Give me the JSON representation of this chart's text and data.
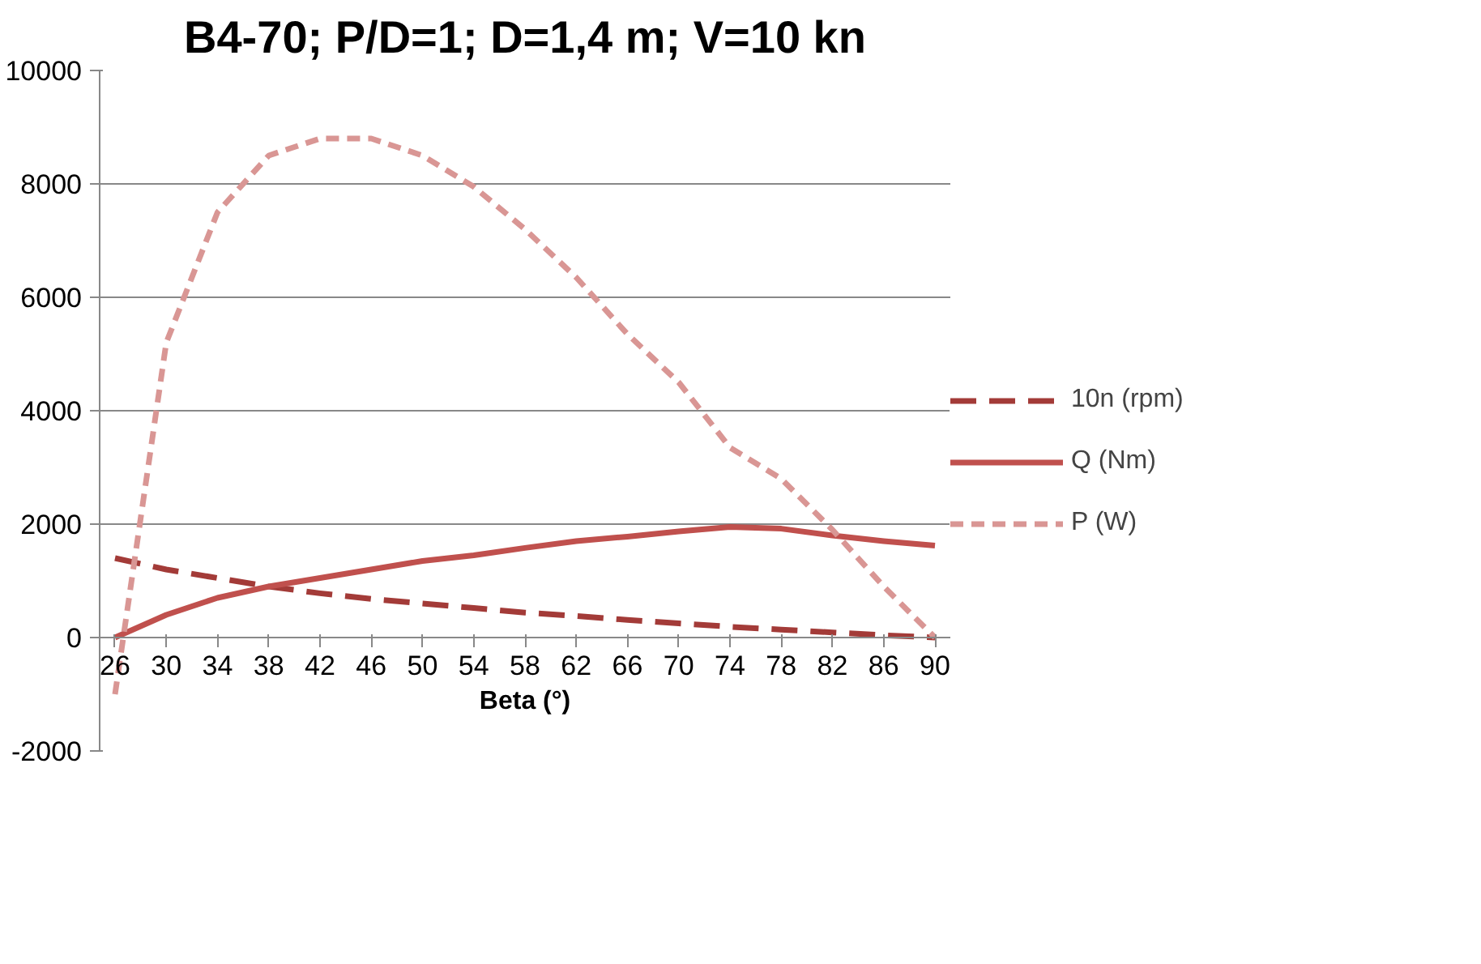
{
  "chart_data": {
    "type": "line",
    "title": "B4-70; P/D=1; D=1,4 m; V=10 kn",
    "xlabel": "Beta (°)",
    "categories": [
      "26",
      "30",
      "34",
      "38",
      "42",
      "46",
      "50",
      "54",
      "58",
      "62",
      "66",
      "70",
      "74",
      "78",
      "82",
      "86",
      "90"
    ],
    "series": [
      {
        "name": "10n (rpm)",
        "color": "#a33b38",
        "line_style": "dashed",
        "values": [
          1400,
          1200,
          1050,
          900,
          780,
          680,
          600,
          520,
          440,
          380,
          310,
          250,
          190,
          140,
          90,
          40,
          0
        ]
      },
      {
        "name": "Q (Nm)",
        "color": "#c0504d",
        "line_style": "solid",
        "values": [
          0,
          400,
          700,
          900,
          1050,
          1200,
          1350,
          1450,
          1580,
          1700,
          1780,
          1870,
          1950,
          1920,
          1800,
          1700,
          1620
        ]
      },
      {
        "name": "P (W)",
        "color": "#d99694",
        "line_style": "dotted",
        "values": [
          -1000,
          5200,
          7500,
          8500,
          8800,
          8800,
          8500,
          7950,
          7200,
          6350,
          5350,
          4500,
          3350,
          2800,
          1900,
          900,
          0
        ]
      }
    ],
    "ylim": [
      -2000,
      10000
    ],
    "yticks": [
      -2000,
      0,
      2000,
      4000,
      6000,
      8000,
      10000
    ],
    "grid": "y",
    "legend": "right"
  }
}
